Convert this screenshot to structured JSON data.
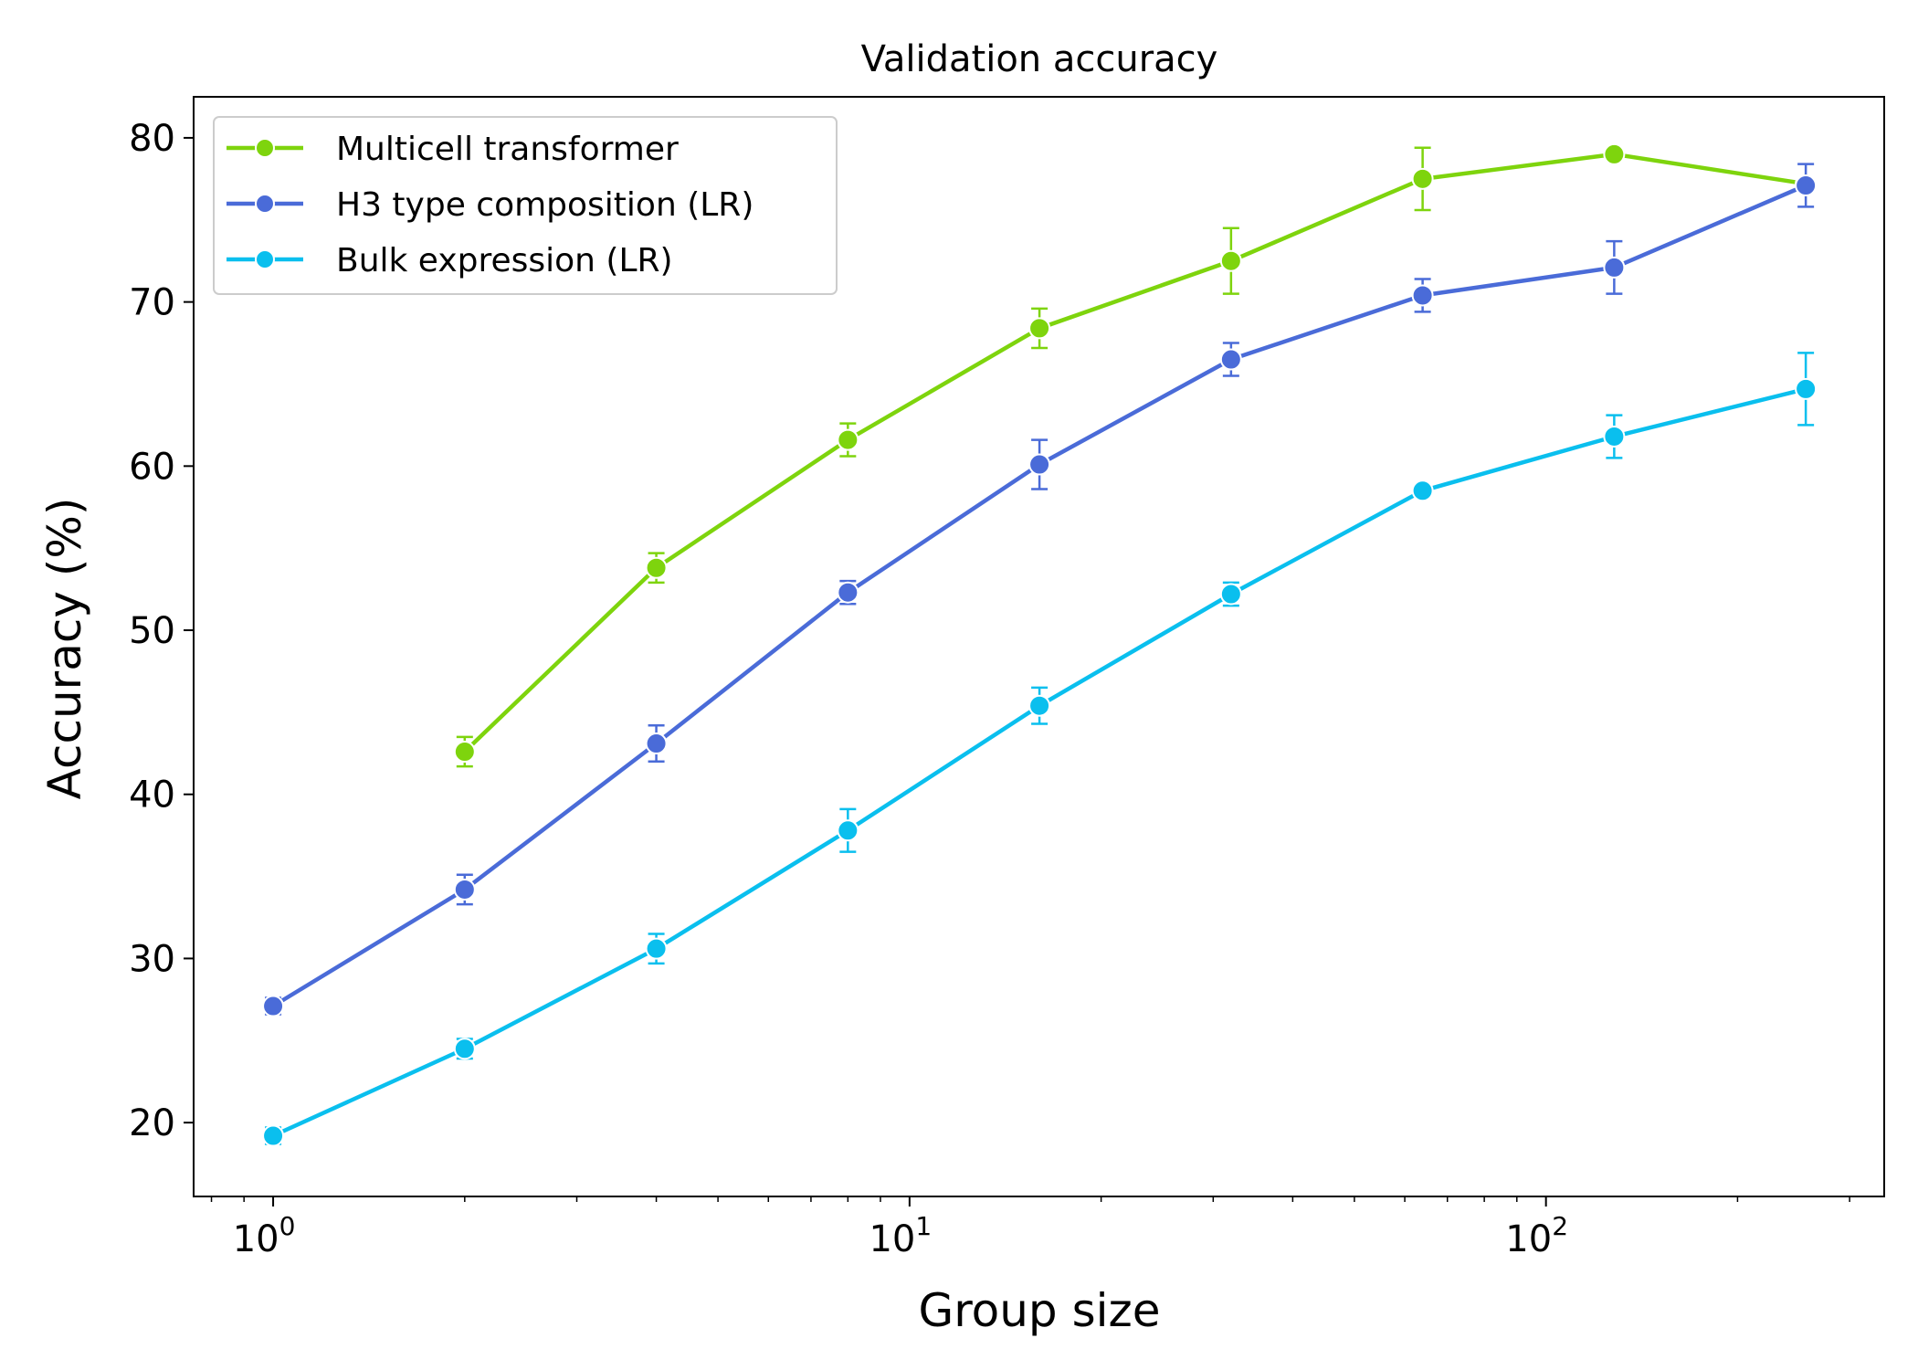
{
  "chart_data": {
    "type": "line",
    "title": "Validation accuracy",
    "xlabel": "Group size",
    "ylabel": "Accuracy (%)",
    "xscale": "log",
    "xlim": [
      0.75,
      340
    ],
    "ylim": [
      15.5,
      82.5
    ],
    "x_ticks": [
      {
        "value": 1,
        "base": "10",
        "exp": "0"
      },
      {
        "value": 10,
        "base": "10",
        "exp": "1"
      },
      {
        "value": 100,
        "base": "10",
        "exp": "2"
      }
    ],
    "y_ticks": [
      20,
      30,
      40,
      50,
      60,
      70,
      80
    ],
    "grid": false,
    "legend_position": "upper-left",
    "series": [
      {
        "name": "Multicell transformer",
        "color": "#7ed40d",
        "x": [
          2,
          4,
          8,
          16,
          32,
          64,
          128,
          256
        ],
        "y": [
          42.6,
          53.8,
          61.6,
          68.4,
          72.5,
          77.5,
          79.0,
          77.2
        ],
        "err": [
          0.9,
          0.9,
          1.0,
          1.2,
          2.0,
          1.9,
          0.0,
          0.0
        ]
      },
      {
        "name": "H3 type composition (LR)",
        "color": "#4a6bd8",
        "x": [
          1,
          2,
          4,
          8,
          16,
          32,
          64,
          128,
          256
        ],
        "y": [
          27.1,
          34.2,
          43.1,
          52.3,
          60.1,
          66.5,
          70.4,
          72.1,
          77.1
        ],
        "err": [
          0.5,
          0.9,
          1.1,
          0.7,
          1.5,
          1.0,
          1.0,
          1.6,
          1.3
        ]
      },
      {
        "name": "Bulk expression (LR)",
        "color": "#0abfee",
        "x": [
          1,
          2,
          4,
          8,
          16,
          32,
          64,
          128,
          256
        ],
        "y": [
          19.2,
          24.5,
          30.6,
          37.8,
          45.4,
          52.2,
          58.5,
          61.8,
          64.7
        ],
        "err": [
          0.5,
          0.6,
          0.9,
          1.3,
          1.1,
          0.7,
          0.3,
          1.3,
          2.2
        ]
      }
    ]
  }
}
